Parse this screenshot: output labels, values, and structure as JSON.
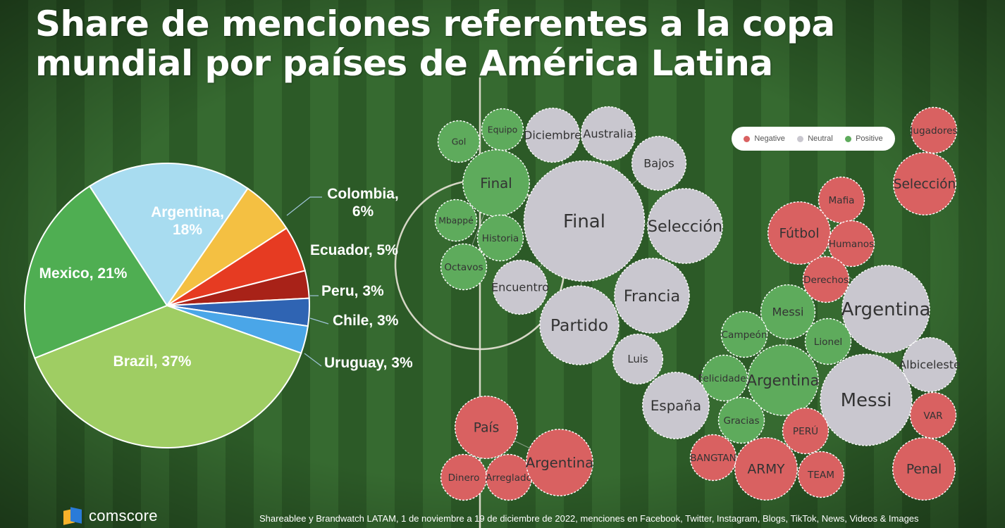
{
  "title": "Share de menciones referentes a la copa mundial por países de América Latina",
  "legend": [
    {
      "label": "Negative",
      "color": "#d96161"
    },
    {
      "label": "Neutral",
      "color": "#c9c7cf"
    },
    {
      "label": "Positive",
      "color": "#5eab5c"
    }
  ],
  "chart_data": [
    {
      "type": "pie",
      "title": "",
      "start_angle_deg": 0,
      "slices": [
        {
          "label": "Argentina, 18%",
          "value": 18,
          "color": "#a8dcf0",
          "label_color": "#ffffff"
        },
        {
          "label": "Colombia, 6%",
          "value": 6,
          "color": "#f4c042",
          "label_color": "#ffffff"
        },
        {
          "label": "Ecuador, 5%",
          "value": 5,
          "color": "#e63b22",
          "label_color": "#ffffff"
        },
        {
          "label": "Peru, 3%",
          "value": 3,
          "color": "#a82218",
          "label_color": "#ffffff"
        },
        {
          "label": "Chile, 3%",
          "value": 3,
          "color": "#2f64b3",
          "label_color": "#ffffff"
        },
        {
          "label": "Uruguay, 3%",
          "value": 3,
          "color": "#4aa6e8",
          "label_color": "#ffffff"
        },
        {
          "label": "Brazil, 37%",
          "value": 37,
          "color": "#9fcd63",
          "label_color": "#ffffff"
        },
        {
          "label": "Mexico, 21%",
          "value": 21,
          "color": "#4fae52",
          "label_color": "#ffffff"
        }
      ]
    },
    {
      "type": "bubble",
      "title": "",
      "bubbles": [
        {
          "label": "Gol",
          "sentiment": "Positive",
          "size": 1.0
        },
        {
          "label": "Equipo",
          "sentiment": "Positive",
          "size": 1.0
        },
        {
          "label": "Final",
          "sentiment": "Positive",
          "size": 1.6
        },
        {
          "label": "Mbappé",
          "sentiment": "Positive",
          "size": 1.0
        },
        {
          "label": "Historia",
          "sentiment": "Positive",
          "size": 1.1
        },
        {
          "label": "Octavos",
          "sentiment": "Positive",
          "size": 1.1
        },
        {
          "label": "Diciembre",
          "sentiment": "Neutral",
          "size": 1.3
        },
        {
          "label": "Australia",
          "sentiment": "Neutral",
          "size": 1.3
        },
        {
          "label": "Bajos",
          "sentiment": "Neutral",
          "size": 1.3
        },
        {
          "label": "Final",
          "sentiment": "Neutral",
          "size": 2.9
        },
        {
          "label": "Selección",
          "sentiment": "Neutral",
          "size": 1.8
        },
        {
          "label": "Encuentro",
          "sentiment": "Neutral",
          "size": 1.3
        },
        {
          "label": "Partido",
          "sentiment": "Neutral",
          "size": 1.9
        },
        {
          "label": "Francia",
          "sentiment": "Neutral",
          "size": 1.8
        },
        {
          "label": "Luis",
          "sentiment": "Neutral",
          "size": 1.2
        },
        {
          "label": "España",
          "sentiment": "Neutral",
          "size": 1.6
        },
        {
          "label": "País",
          "sentiment": "Negative",
          "size": 1.5
        },
        {
          "label": "Dinero",
          "sentiment": "Negative",
          "size": 1.1
        },
        {
          "label": "Arreglado",
          "sentiment": "Negative",
          "size": 1.1
        },
        {
          "label": "Argentina",
          "sentiment": "Negative",
          "size": 1.6
        },
        {
          "label": "Jugadores",
          "sentiment": "Negative",
          "size": 1.1
        },
        {
          "label": "Selección",
          "sentiment": "Negative",
          "size": 1.5
        },
        {
          "label": "Mafia",
          "sentiment": "Negative",
          "size": 1.1
        },
        {
          "label": "Fútbol",
          "sentiment": "Negative",
          "size": 1.5
        },
        {
          "label": "Humanos",
          "sentiment": "Negative",
          "size": 1.1
        },
        {
          "label": "Derechos",
          "sentiment": "Negative",
          "size": 1.1
        },
        {
          "label": "Argentina",
          "sentiment": "Neutral",
          "size": 2.1
        },
        {
          "label": "Messi",
          "sentiment": "Positive",
          "size": 1.3
        },
        {
          "label": "Campeón",
          "sentiment": "Positive",
          "size": 1.1
        },
        {
          "label": "Lionel",
          "sentiment": "Positive",
          "size": 1.1
        },
        {
          "label": "Felicidades",
          "sentiment": "Positive",
          "size": 1.1
        },
        {
          "label": "Argentina",
          "sentiment": "Positive",
          "size": 1.7
        },
        {
          "label": "Albiceleste",
          "sentiment": "Neutral",
          "size": 1.3
        },
        {
          "label": "Messi",
          "sentiment": "Neutral",
          "size": 2.2
        },
        {
          "label": "Gracias",
          "sentiment": "Positive",
          "size": 1.1
        },
        {
          "label": "PERÚ",
          "sentiment": "Negative",
          "size": 1.1
        },
        {
          "label": "BANGTAN",
          "sentiment": "Negative",
          "size": 1.1
        },
        {
          "label": "ARMY",
          "sentiment": "Negative",
          "size": 1.5
        },
        {
          "label": "TEAM",
          "sentiment": "Negative",
          "size": 1.1
        },
        {
          "label": "VAR",
          "sentiment": "Negative",
          "size": 1.1
        },
        {
          "label": "Penal",
          "sentiment": "Negative",
          "size": 1.5
        }
      ]
    }
  ],
  "footer": {
    "brand": "comscore",
    "source": "Shareablee  y Brandwatch LATAM, 1 de noviembre a 19 de diciembre de 2022, menciones en Facebook, Twitter, Instagram, Blogs, TikTok, News, Videos & Images"
  }
}
